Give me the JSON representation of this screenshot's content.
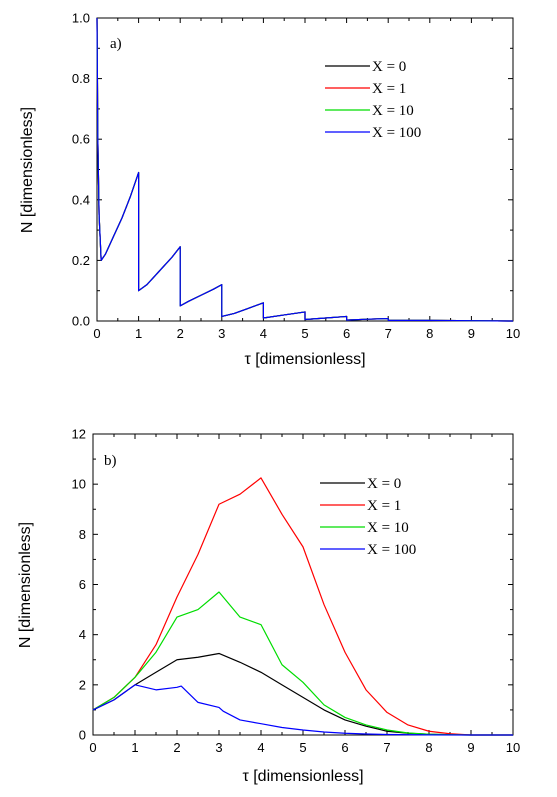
{
  "chart_data": [
    {
      "type": "line",
      "panel_label": "a)",
      "xlabel": "τ [dimensionless]",
      "ylabel": "N [dimensionless]",
      "xlim": [
        0,
        10
      ],
      "ylim": [
        0,
        1.0
      ],
      "xticks": [
        "0",
        "1",
        "2",
        "3",
        "4",
        "5",
        "6",
        "7",
        "8",
        "9",
        "10"
      ],
      "yticks": [
        "0.0",
        "0.2",
        "0.4",
        "0.6",
        "0.8",
        "1.0"
      ],
      "grid": false,
      "legend_position": "top-right",
      "series": [
        {
          "name": "X = 0",
          "color": "#000000",
          "x": [
            0,
            0.02,
            0.05,
            0.1,
            0.2,
            0.4,
            0.6,
            0.8,
            1.0,
            1.0,
            1.2,
            1.4,
            1.6,
            1.8,
            2.0,
            2.0,
            2.2,
            2.5,
            2.8,
            3.0,
            3.0,
            3.3,
            3.6,
            4.0,
            4.0,
            4.5,
            5.0,
            5.0,
            5.5,
            6.0,
            6.0,
            6.5,
            7.0,
            7.0,
            8.0,
            9.0,
            10.0
          ],
          "y": [
            1.0,
            0.6,
            0.35,
            0.2,
            0.22,
            0.28,
            0.34,
            0.41,
            0.49,
            0.1,
            0.12,
            0.15,
            0.18,
            0.21,
            0.245,
            0.05,
            0.065,
            0.085,
            0.105,
            0.12,
            0.015,
            0.025,
            0.04,
            0.06,
            0.01,
            0.02,
            0.03,
            0.005,
            0.01,
            0.015,
            0.003,
            0.006,
            0.008,
            0.002,
            0.002,
            0.001,
            0.0
          ]
        },
        {
          "name": "X = 1",
          "color": "#ff0000",
          "x": [
            0,
            0.02,
            0.05,
            0.1,
            0.2,
            0.4,
            0.6,
            0.8,
            1.0,
            1.0,
            1.2,
            1.4,
            1.6,
            1.8,
            2.0,
            2.0,
            2.2,
            2.5,
            2.8,
            3.0,
            3.0,
            3.3,
            3.6,
            4.0,
            4.0,
            4.5,
            5.0,
            5.0,
            5.5,
            6.0,
            6.0,
            6.5,
            7.0,
            7.0,
            8.0,
            9.0,
            10.0
          ],
          "y": [
            1.0,
            0.6,
            0.35,
            0.2,
            0.22,
            0.28,
            0.34,
            0.41,
            0.49,
            0.1,
            0.12,
            0.15,
            0.18,
            0.21,
            0.245,
            0.05,
            0.065,
            0.085,
            0.105,
            0.12,
            0.015,
            0.025,
            0.04,
            0.06,
            0.01,
            0.02,
            0.03,
            0.005,
            0.01,
            0.015,
            0.003,
            0.006,
            0.008,
            0.002,
            0.002,
            0.001,
            0.0
          ]
        },
        {
          "name": "X = 10",
          "color": "#00dd00",
          "x": [
            0,
            0.02,
            0.05,
            0.1,
            0.2,
            0.4,
            0.6,
            0.8,
            1.0,
            1.0,
            1.2,
            1.4,
            1.6,
            1.8,
            2.0,
            2.0,
            2.2,
            2.5,
            2.8,
            3.0,
            3.0,
            3.3,
            3.6,
            4.0,
            4.0,
            4.5,
            5.0,
            5.0,
            5.5,
            6.0,
            6.0,
            6.5,
            7.0,
            7.0,
            8.0,
            9.0,
            10.0
          ],
          "y": [
            1.0,
            0.6,
            0.35,
            0.2,
            0.22,
            0.28,
            0.34,
            0.41,
            0.49,
            0.1,
            0.12,
            0.15,
            0.18,
            0.21,
            0.245,
            0.05,
            0.065,
            0.085,
            0.105,
            0.12,
            0.015,
            0.025,
            0.04,
            0.06,
            0.01,
            0.02,
            0.03,
            0.005,
            0.01,
            0.015,
            0.003,
            0.006,
            0.008,
            0.002,
            0.002,
            0.001,
            0.0
          ]
        },
        {
          "name": "X = 100",
          "color": "#0000ff",
          "x": [
            0,
            0.02,
            0.05,
            0.1,
            0.2,
            0.4,
            0.6,
            0.8,
            1.0,
            1.0,
            1.2,
            1.4,
            1.6,
            1.8,
            2.0,
            2.0,
            2.2,
            2.5,
            2.8,
            3.0,
            3.0,
            3.3,
            3.6,
            4.0,
            4.0,
            4.5,
            5.0,
            5.0,
            5.5,
            6.0,
            6.0,
            6.5,
            7.0,
            7.0,
            8.0,
            9.0,
            10.0
          ],
          "y": [
            1.0,
            0.6,
            0.35,
            0.2,
            0.22,
            0.28,
            0.34,
            0.41,
            0.49,
            0.1,
            0.12,
            0.15,
            0.18,
            0.21,
            0.245,
            0.05,
            0.065,
            0.085,
            0.105,
            0.12,
            0.015,
            0.025,
            0.04,
            0.06,
            0.01,
            0.02,
            0.03,
            0.005,
            0.01,
            0.015,
            0.003,
            0.006,
            0.008,
            0.002,
            0.002,
            0.001,
            0.0
          ]
        }
      ]
    },
    {
      "type": "line",
      "panel_label": "b)",
      "xlabel": "τ [dimensionless]",
      "ylabel": "N [dimensionless]",
      "xlim": [
        0,
        10
      ],
      "ylim": [
        0,
        12
      ],
      "xticks": [
        "0",
        "1",
        "2",
        "3",
        "4",
        "5",
        "6",
        "7",
        "8",
        "9",
        "10"
      ],
      "yticks": [
        "0",
        "2",
        "4",
        "6",
        "8",
        "10",
        "12"
      ],
      "grid": false,
      "legend_position": "top-right",
      "series": [
        {
          "name": "X = 0",
          "color": "#000000",
          "x": [
            0,
            0.5,
            1.0,
            1.5,
            2.0,
            2.5,
            3.0,
            3.5,
            4.0,
            4.5,
            5.0,
            5.5,
            6.0,
            6.5,
            7.0,
            7.5,
            8.0,
            8.5,
            9.0,
            10.0
          ],
          "y": [
            1.0,
            1.4,
            2.0,
            2.5,
            3.0,
            3.1,
            3.25,
            2.9,
            2.5,
            2.0,
            1.5,
            1.0,
            0.6,
            0.35,
            0.15,
            0.07,
            0.03,
            0.01,
            0.0,
            0.0
          ]
        },
        {
          "name": "X = 1",
          "color": "#ff0000",
          "x": [
            0,
            0.5,
            1.0,
            1.5,
            2.0,
            2.5,
            3.0,
            3.5,
            4.0,
            4.5,
            5.0,
            5.5,
            6.0,
            6.5,
            7.0,
            7.5,
            8.0,
            8.5,
            9.0,
            10.0
          ],
          "y": [
            1.0,
            1.5,
            2.3,
            3.6,
            5.5,
            7.2,
            9.2,
            9.6,
            10.25,
            8.8,
            7.5,
            5.2,
            3.3,
            1.8,
            0.9,
            0.4,
            0.15,
            0.05,
            0.0,
            0.0
          ]
        },
        {
          "name": "X = 10",
          "color": "#00dd00",
          "x": [
            0,
            0.5,
            1.0,
            1.5,
            2.0,
            2.5,
            3.0,
            3.5,
            4.0,
            4.5,
            5.0,
            5.5,
            6.0,
            6.5,
            7.0,
            7.5,
            8.0,
            8.5,
            9.0,
            10.0
          ],
          "y": [
            1.0,
            1.5,
            2.3,
            3.3,
            4.7,
            5.0,
            5.7,
            4.7,
            4.4,
            2.8,
            2.1,
            1.2,
            0.7,
            0.4,
            0.2,
            0.08,
            0.03,
            0.01,
            0.0,
            0.0
          ]
        },
        {
          "name": "X = 100",
          "color": "#0000ff",
          "x": [
            0,
            0.5,
            1.0,
            1.5,
            2.0,
            2.1,
            2.5,
            3.0,
            3.1,
            3.5,
            4.0,
            4.5,
            5.0,
            5.5,
            6.0,
            6.5,
            7.0,
            8.0,
            9.0,
            10.0
          ],
          "y": [
            1.0,
            1.4,
            2.0,
            1.8,
            1.9,
            1.95,
            1.3,
            1.1,
            0.95,
            0.6,
            0.45,
            0.3,
            0.2,
            0.12,
            0.07,
            0.04,
            0.02,
            0.005,
            0.0,
            0.0
          ]
        }
      ]
    }
  ]
}
